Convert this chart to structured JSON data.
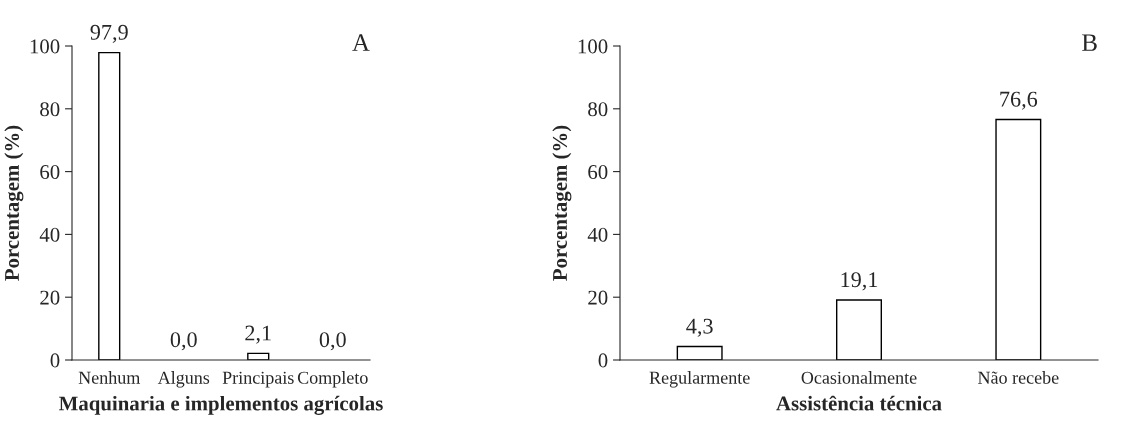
{
  "chart_data": [
    {
      "type": "bar",
      "categories": [
        "Nenhum",
        "Alguns",
        "Principais",
        "Completo"
      ],
      "values": [
        97.9,
        0.0,
        2.1,
        0.0
      ],
      "value_labels": [
        "97,9",
        "0,0",
        "2,1",
        "0,0"
      ],
      "color": "#ffffff",
      "ylim": [
        0,
        100
      ],
      "yticks": [
        0,
        20,
        40,
        60,
        80,
        100
      ],
      "ylabel": "Porcentagem (%)",
      "xlabel": "Maquinaria e implementos agrícolas",
      "annotations": [
        "A"
      ],
      "grid": false
    },
    {
      "type": "bar",
      "categories": [
        "Regularmente",
        "Ocasionalmente",
        "Não recebe"
      ],
      "values": [
        4.3,
        19.1,
        76.6
      ],
      "value_labels": [
        "4,3",
        "19,1",
        "76,6"
      ],
      "color": "#ffffff",
      "ylim": [
        0,
        100
      ],
      "yticks": [
        0,
        20,
        40,
        60,
        80,
        100
      ],
      "ylabel": "Porcentagem (%)",
      "xlabel": "Assistência técnica",
      "annotations": [
        "B"
      ],
      "grid": false
    }
  ]
}
